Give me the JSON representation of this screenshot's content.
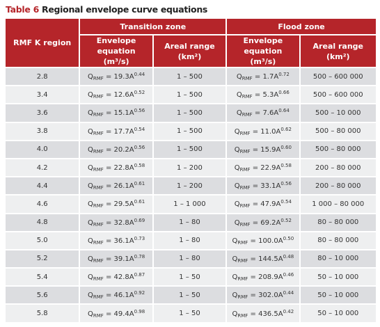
{
  "title": {
    "label": "Table 6",
    "text": "Regional envelope curve equations"
  },
  "table": {
    "header": {
      "region": "RMF K region",
      "transition": "Transition zone",
      "flood": "Flood zone",
      "t_equation": "Envelope equation (m³/s)",
      "t_range": "Areal range (km²)",
      "f_equation": "Envelope equation (m³/s)",
      "f_range": "Areal range (km²)"
    },
    "rows": [
      {
        "region": "2.8",
        "t_eq": {
          "base": "Q",
          "sub": "RMF",
          "rhs": " = 19.3A",
          "sup": "0.44"
        },
        "t_range": "1 – 500",
        "f_eq": {
          "base": "Q",
          "sub": "RMF",
          "rhs": " = 1.7A",
          "sup": "0.72"
        },
        "f_range": "500 – 600 000"
      },
      {
        "region": "3.4",
        "t_eq": {
          "base": "Q",
          "sub": "RMF",
          "rhs": " = 12.6A",
          "sup": "0.52"
        },
        "t_range": "1 – 500",
        "f_eq": {
          "base": "Q",
          "sub": "RMF",
          "rhs": " = 5.3A",
          "sup": "0.66"
        },
        "f_range": "500 – 600 000"
      },
      {
        "region": "3.6",
        "t_eq": {
          "base": "Q",
          "sub": "RMF",
          "rhs": " = 15.1A",
          "sup": "0.56"
        },
        "t_range": "1 – 500",
        "f_eq": {
          "base": "Q",
          "sub": "RMF",
          "rhs": " = 7.6A",
          "sup": "0.64"
        },
        "f_range": "500 – 10 000"
      },
      {
        "region": "3.8",
        "t_eq": {
          "base": "Q",
          "sub": "RMF",
          "rhs": " = 17.7A",
          "sup": "0.54"
        },
        "t_range": "1 – 500",
        "f_eq": {
          "base": "Q",
          "sub": "RMF",
          "rhs": " = 11.0A",
          "sup": "0.62"
        },
        "f_range": "500 – 80 000"
      },
      {
        "region": "4.0",
        "t_eq": {
          "base": "Q",
          "sub": "RMF",
          "rhs": " = 20.2A",
          "sup": "0.56"
        },
        "t_range": "1 – 500",
        "f_eq": {
          "base": "Q",
          "sub": "RMF",
          "rhs": " = 15.9A",
          "sup": "0.60"
        },
        "f_range": "500 – 80 000"
      },
      {
        "region": "4.2",
        "t_eq": {
          "base": "Q",
          "sub": "RMF",
          "rhs": " = 22.8A",
          "sup": "0.58"
        },
        "t_range": "1 – 200",
        "f_eq": {
          "base": "Q",
          "sub": "RMF",
          "rhs": " = 22.9A",
          "sup": "0.58"
        },
        "f_range": "200 – 80 000"
      },
      {
        "region": "4.4",
        "t_eq": {
          "base": "Q",
          "sub": "RMF",
          "rhs": " = 26.1A",
          "sup": "0.61"
        },
        "t_range": "1 – 200",
        "f_eq": {
          "base": "Q",
          "sub": "RMF",
          "rhs": " = 33.1A",
          "sup": "0.56"
        },
        "f_range": "200 – 80 000"
      },
      {
        "region": "4.6",
        "t_eq": {
          "base": "Q",
          "sub": "RMF",
          "rhs": " = 29.5A",
          "sup": "0.61"
        },
        "t_range": "1 – 1 000",
        "f_eq": {
          "base": "Q",
          "sub": "RMF",
          "rhs": " = 47.9A",
          "sup": "0.54"
        },
        "f_range": "1 000 – 80 000"
      },
      {
        "region": "4.8",
        "t_eq": {
          "base": "Q",
          "sub": "RMF",
          "rhs": " = 32.8A",
          "sup": "0.69"
        },
        "t_range": "1 – 80",
        "f_eq": {
          "base": "Q",
          "sub": "RMF",
          "rhs": " = 69.2A",
          "sup": "0.52"
        },
        "f_range": "80 – 80 000"
      },
      {
        "region": "5.0",
        "t_eq": {
          "base": "Q",
          "sub": "RMF",
          "rhs": " = 36.1A",
          "sup": "0.73"
        },
        "t_range": "1 – 80",
        "f_eq": {
          "base": "Q",
          "sub": "RMF",
          "rhs": " = 100.0A",
          "sup": "0.50"
        },
        "f_range": "80 – 80 000"
      },
      {
        "region": "5.2",
        "t_eq": {
          "base": "Q",
          "sub": "RMF",
          "rhs": " = 39.1A",
          "sup": "0.78"
        },
        "t_range": "1 – 80",
        "f_eq": {
          "base": "Q",
          "sub": "RMF",
          "rhs": " = 144.5A",
          "sup": "0.48"
        },
        "f_range": "80 – 10 000"
      },
      {
        "region": "5.4",
        "t_eq": {
          "base": "Q",
          "sub": "RMF",
          "rhs": " = 42.8A",
          "sup": "0.87"
        },
        "t_range": "1 – 50",
        "f_eq": {
          "base": "Q",
          "sub": "RMF",
          "rhs": " = 208.9A",
          "sup": "0.46"
        },
        "f_range": "50 – 10 000"
      },
      {
        "region": "5.6",
        "t_eq": {
          "base": "Q",
          "sub": "RMF",
          "rhs": " = 46.1A",
          "sup": "0.92"
        },
        "t_range": "1 – 50",
        "f_eq": {
          "base": "Q",
          "sub": "RMF",
          "rhs": " = 302.0A",
          "sup": "0.44"
        },
        "f_range": "50 – 10 000"
      },
      {
        "region": "5.8",
        "t_eq": {
          "base": "Q",
          "sub": "RMF",
          "rhs": " = 49.4A",
          "sup": "0.98"
        },
        "t_range": "1 – 50",
        "f_eq": {
          "base": "Q",
          "sub": "RMF",
          "rhs": " = 436.5A",
          "sup": "0.42"
        },
        "f_range": "50 – 10 000"
      }
    ]
  }
}
